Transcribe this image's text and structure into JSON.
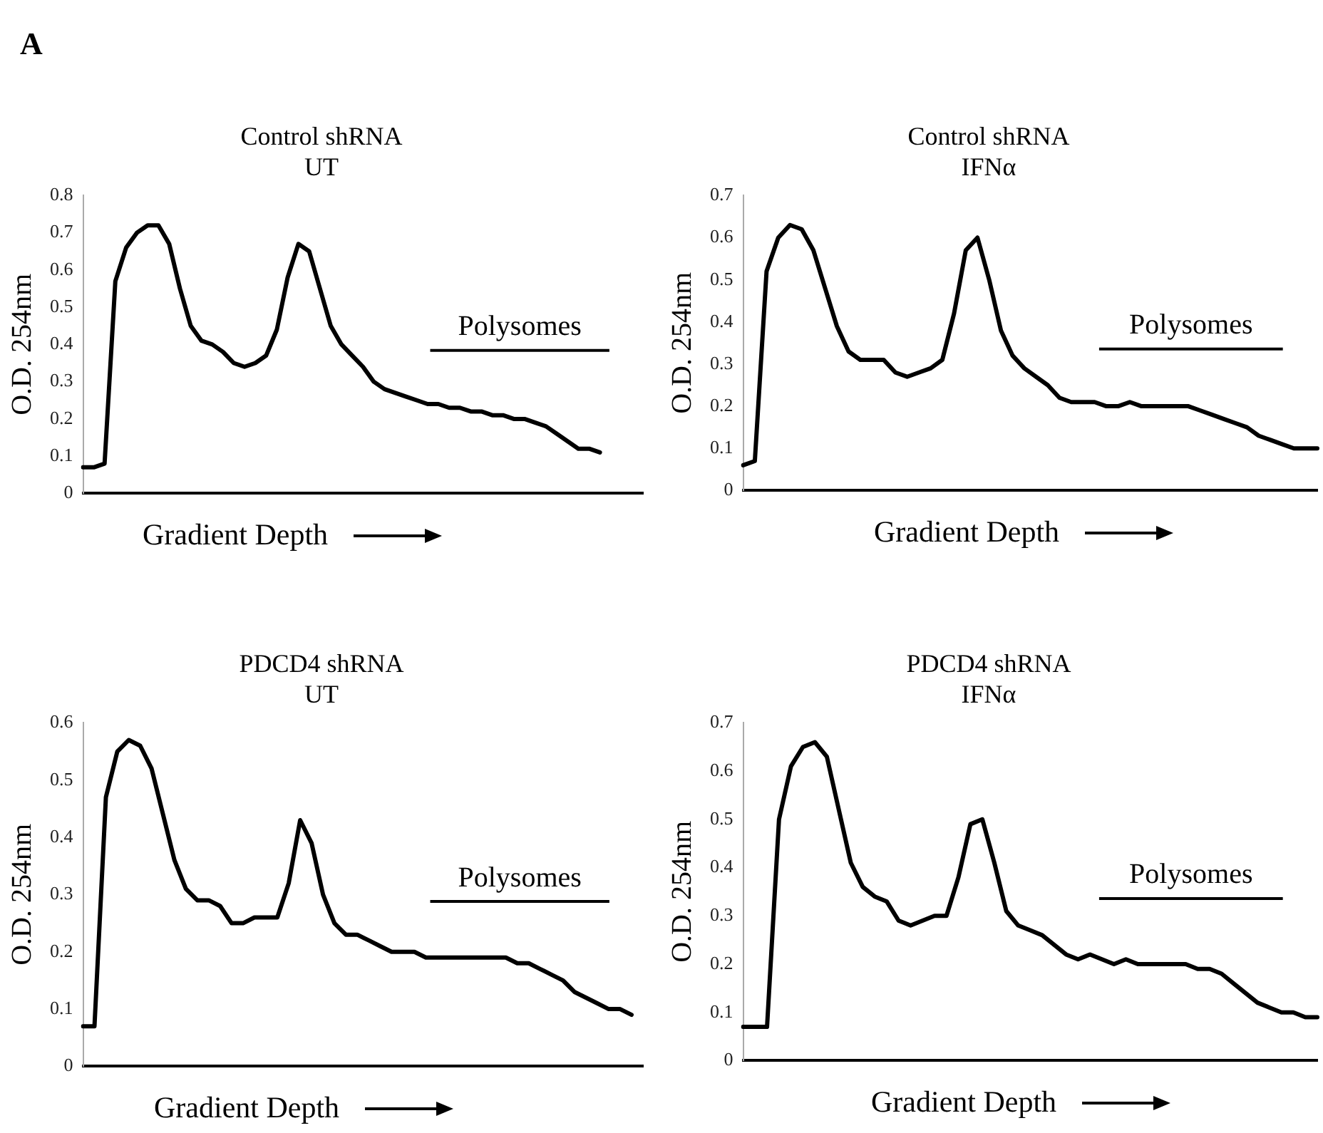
{
  "chart_data": [
    {
      "type": "line",
      "title": "Control shRNA",
      "subtitle": "UT",
      "xlabel": "Gradient Depth",
      "ylabel": "O.D. 254nm",
      "annotations": [
        "A",
        "Polysomes"
      ],
      "tick_labels": "y",
      "marker": "none",
      "ylim": [
        0,
        0.8
      ],
      "yticks": [
        0,
        0.1,
        0.2,
        0.3,
        0.4,
        0.5,
        0.6,
        0.7,
        0.8
      ],
      "categories": [
        null,
        null,
        null,
        null,
        null,
        null,
        null,
        null,
        null,
        null,
        null,
        null,
        null,
        null,
        null,
        null,
        null,
        null,
        null,
        null,
        null,
        null,
        null,
        null,
        null,
        null,
        null,
        null,
        null,
        null,
        null,
        null,
        null,
        null,
        null,
        null,
        null,
        null,
        null,
        null,
        null,
        null,
        null,
        null,
        null,
        null,
        null,
        null,
        null,
        null,
        null,
        null,
        null
      ],
      "series": [
        {
          "color": "#000000",
          "values": [
            0.07,
            0.07,
            0.08,
            0.57,
            0.66,
            0.7,
            0.72,
            0.72,
            0.67,
            0.55,
            0.45,
            0.41,
            0.4,
            0.38,
            0.35,
            0.34,
            0.35,
            0.37,
            0.44,
            0.58,
            0.67,
            0.65,
            0.55,
            0.45,
            0.4,
            0.37,
            0.34,
            0.3,
            0.28,
            0.27,
            0.26,
            0.25,
            0.24,
            0.24,
            0.23,
            0.23,
            0.22,
            0.22,
            0.21,
            0.21,
            0.2,
            0.2,
            0.19,
            0.18,
            0.16,
            0.14,
            0.12,
            0.12,
            0.11,
            null,
            null,
            null,
            null
          ]
        }
      ]
    },
    {
      "type": "line",
      "title": "Control shRNA",
      "subtitle": "IFNα",
      "xlabel": "Gradient Depth",
      "ylabel": "O.D. 254nm",
      "annotations": [
        "Polysomes"
      ],
      "tick_labels": "y",
      "marker": "none",
      "ylim": [
        0,
        0.7
      ],
      "yticks": [
        0,
        0.1,
        0.2,
        0.3,
        0.4,
        0.5,
        0.6,
        0.7
      ],
      "categories": [
        null,
        null,
        null,
        null,
        null,
        null,
        null,
        null,
        null,
        null,
        null,
        null,
        null,
        null,
        null,
        null,
        null,
        null,
        null,
        null,
        null,
        null,
        null,
        null,
        null,
        null,
        null,
        null,
        null,
        null,
        null,
        null,
        null,
        null,
        null,
        null,
        null,
        null,
        null,
        null,
        null,
        null,
        null,
        null,
        null,
        null,
        null,
        null,
        null,
        null
      ],
      "series": [
        {
          "color": "#000000",
          "values": [
            0.06,
            0.07,
            0.52,
            0.6,
            0.63,
            0.62,
            0.57,
            0.48,
            0.39,
            0.33,
            0.31,
            0.31,
            0.31,
            0.28,
            0.27,
            0.28,
            0.29,
            0.31,
            0.42,
            0.57,
            0.6,
            0.5,
            0.38,
            0.32,
            0.29,
            0.27,
            0.25,
            0.22,
            0.21,
            0.21,
            0.21,
            0.2,
            0.2,
            0.21,
            0.2,
            0.2,
            0.2,
            0.2,
            0.2,
            0.19,
            0.18,
            0.17,
            0.16,
            0.15,
            0.13,
            0.12,
            0.11,
            0.1,
            0.1,
            0.1
          ]
        }
      ]
    },
    {
      "type": "line",
      "title": "PDCD4 shRNA",
      "subtitle": "UT",
      "xlabel": "Gradient Depth",
      "ylabel": "O.D. 254nm",
      "annotations": [
        "Polysomes"
      ],
      "tick_labels": "y",
      "marker": "none",
      "ylim": [
        0,
        0.6
      ],
      "yticks": [
        0,
        0.1,
        0.2,
        0.3,
        0.4,
        0.5,
        0.6
      ],
      "categories": [
        null,
        null,
        null,
        null,
        null,
        null,
        null,
        null,
        null,
        null,
        null,
        null,
        null,
        null,
        null,
        null,
        null,
        null,
        null,
        null,
        null,
        null,
        null,
        null,
        null,
        null,
        null,
        null,
        null,
        null,
        null,
        null,
        null,
        null,
        null,
        null,
        null,
        null,
        null,
        null,
        null,
        null,
        null,
        null,
        null,
        null,
        null,
        null,
        null,
        null
      ],
      "series": [
        {
          "color": "#000000",
          "values": [
            0.07,
            0.07,
            0.47,
            0.55,
            0.57,
            0.56,
            0.52,
            0.44,
            0.36,
            0.31,
            0.29,
            0.29,
            0.28,
            0.25,
            0.25,
            0.26,
            0.26,
            0.26,
            0.32,
            0.43,
            0.39,
            0.3,
            0.25,
            0.23,
            0.23,
            0.22,
            0.21,
            0.2,
            0.2,
            0.2,
            0.19,
            0.19,
            0.19,
            0.19,
            0.19,
            0.19,
            0.19,
            0.19,
            0.18,
            0.18,
            0.17,
            0.16,
            0.15,
            0.13,
            0.12,
            0.11,
            0.1,
            0.1,
            0.09,
            null
          ]
        }
      ]
    },
    {
      "type": "line",
      "title": "PDCD4 shRNA",
      "subtitle": "IFNα",
      "xlabel": "Gradient Depth",
      "ylabel": "O.D. 254nm",
      "annotations": [
        "Polysomes"
      ],
      "tick_labels": "y",
      "marker": "none",
      "ylim": [
        0,
        0.7
      ],
      "yticks": [
        0,
        0.1,
        0.2,
        0.3,
        0.4,
        0.5,
        0.6,
        0.7
      ],
      "categories": [
        null,
        null,
        null,
        null,
        null,
        null,
        null,
        null,
        null,
        null,
        null,
        null,
        null,
        null,
        null,
        null,
        null,
        null,
        null,
        null,
        null,
        null,
        null,
        null,
        null,
        null,
        null,
        null,
        null,
        null,
        null,
        null,
        null,
        null,
        null,
        null,
        null,
        null,
        null,
        null,
        null,
        null,
        null,
        null,
        null,
        null,
        null,
        null,
        null
      ],
      "series": [
        {
          "color": "#000000",
          "values": [
            0.07,
            0.07,
            0.07,
            0.5,
            0.61,
            0.65,
            0.66,
            0.63,
            0.52,
            0.41,
            0.36,
            0.34,
            0.33,
            0.29,
            0.28,
            0.29,
            0.3,
            0.3,
            0.38,
            0.49,
            0.5,
            0.41,
            0.31,
            0.28,
            0.27,
            0.26,
            0.24,
            0.22,
            0.21,
            0.22,
            0.21,
            0.2,
            0.21,
            0.2,
            0.2,
            0.2,
            0.2,
            0.2,
            0.19,
            0.19,
            0.18,
            0.16,
            0.14,
            0.12,
            0.11,
            0.1,
            0.1,
            0.09,
            0.09
          ]
        }
      ]
    }
  ]
}
